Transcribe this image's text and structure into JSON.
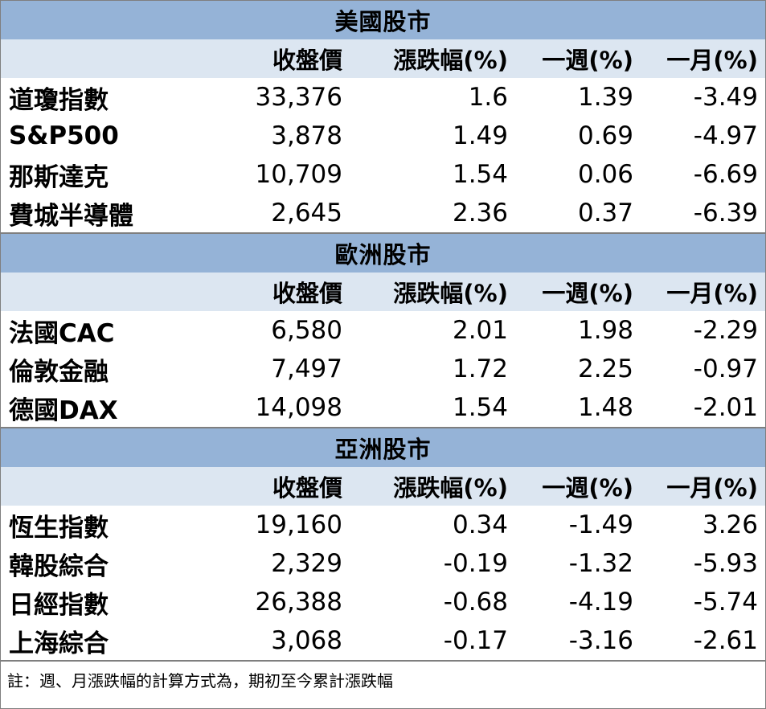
{
  "headers": {
    "close": "收盤價",
    "change": "漲跌幅(%)",
    "week": "一週(%)",
    "month": "一月(%)"
  },
  "sections": [
    {
      "title": "美國股市",
      "rows": [
        {
          "name": "道瓊指數",
          "close": "33,376",
          "change": "1.6",
          "week": "1.39",
          "month": "-3.49"
        },
        {
          "name": "S&P500",
          "close": "3,878",
          "change": "1.49",
          "week": "0.69",
          "month": "-4.97"
        },
        {
          "name": "那斯達克",
          "close": "10,709",
          "change": "1.54",
          "week": "0.06",
          "month": "-6.69"
        },
        {
          "name": "費城半導體",
          "close": "2,645",
          "change": "2.36",
          "week": "0.37",
          "month": "-6.39"
        }
      ]
    },
    {
      "title": "歐洲股市",
      "rows": [
        {
          "name": "法國CAC",
          "close": "6,580",
          "change": "2.01",
          "week": "1.98",
          "month": "-2.29"
        },
        {
          "name": "倫敦金融",
          "close": "7,497",
          "change": "1.72",
          "week": "2.25",
          "month": "-0.97"
        },
        {
          "name": "德國DAX",
          "close": "14,098",
          "change": "1.54",
          "week": "1.48",
          "month": "-2.01"
        }
      ]
    },
    {
      "title": "亞洲股市",
      "rows": [
        {
          "name": "恆生指數",
          "close": "19,160",
          "change": "0.34",
          "week": "-1.49",
          "month": "3.26"
        },
        {
          "name": "韓股綜合",
          "close": "2,329",
          "change": "-0.19",
          "week": "-1.32",
          "month": "-5.93"
        },
        {
          "name": "日經指數",
          "close": "26,388",
          "change": "-0.68",
          "week": "-4.19",
          "month": "-5.74"
        },
        {
          "name": "上海綜合",
          "close": "3,068",
          "change": "-0.17",
          "week": "-3.16",
          "month": "-2.61"
        }
      ]
    }
  ],
  "note": "註：週、月漲跌幅的計算方式為，期初至今累計漲跌幅",
  "colors": {
    "title_bg": "#95b3d7",
    "header_bg": "#dce6f1",
    "border": "#7f7f7f"
  }
}
